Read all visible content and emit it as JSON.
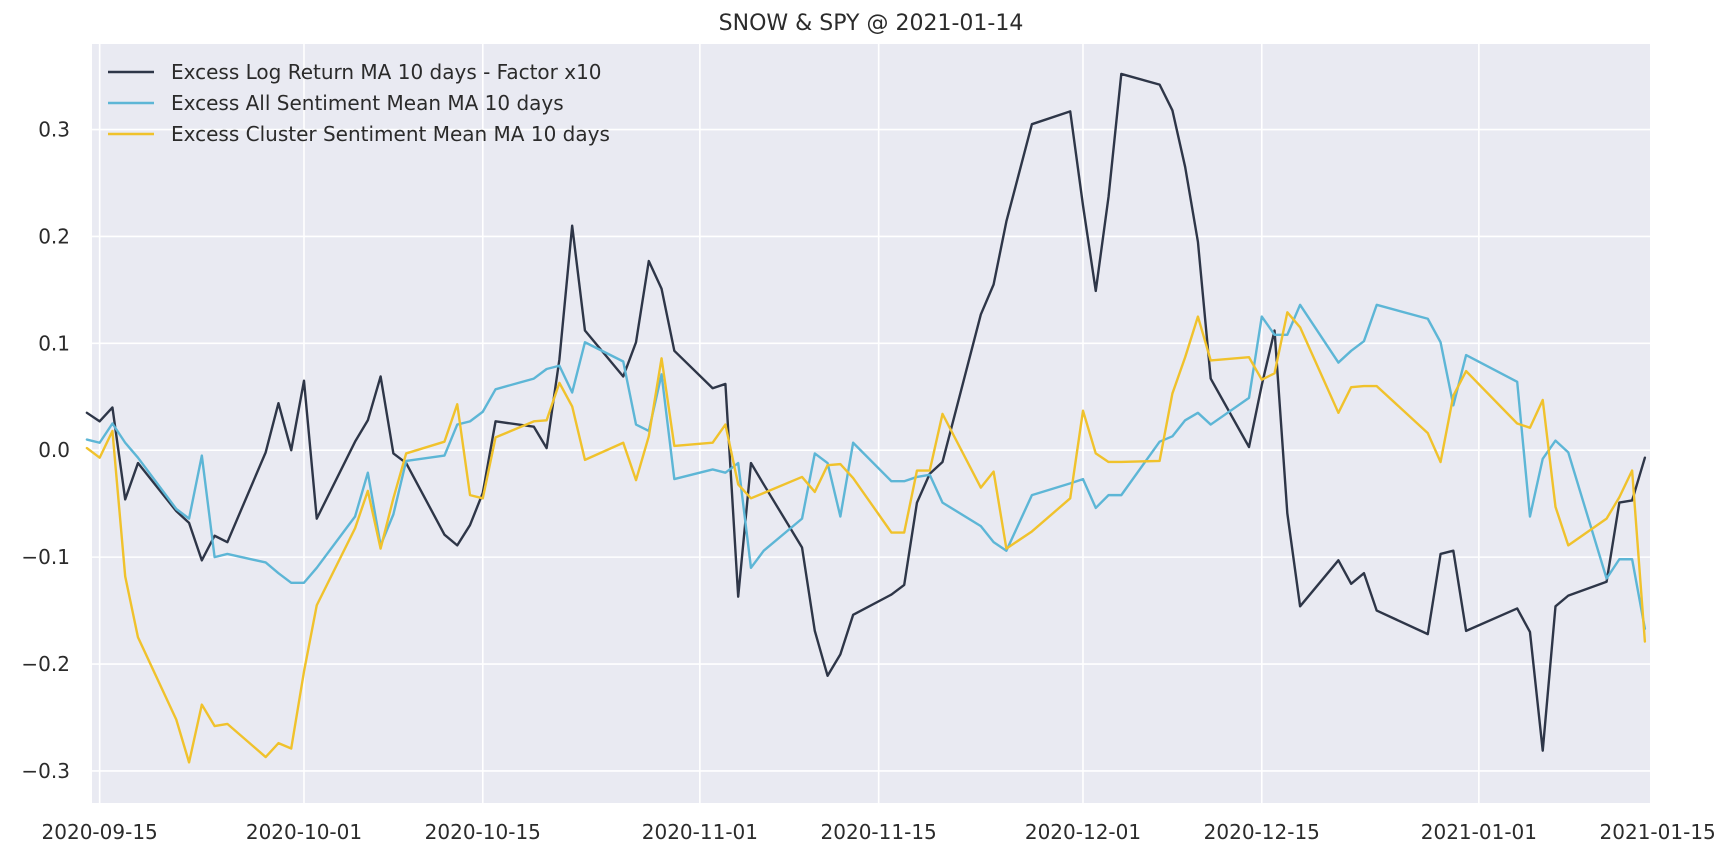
{
  "chart_data": {
    "type": "line",
    "title": "SNOW & SPY @ 2021-01-14",
    "xlabel": "",
    "ylabel": "",
    "x_type": "date",
    "xlim": [
      "2020-09-14",
      "2021-01-14"
    ],
    "ylim": [
      -0.33,
      0.38
    ],
    "xticks": [
      "2020-09-15",
      "2020-10-01",
      "2020-10-15",
      "2020-11-01",
      "2020-11-15",
      "2020-12-01",
      "2020-12-15",
      "2021-01-01",
      "2021-01-15"
    ],
    "yticks": [
      -0.3,
      -0.2,
      -0.1,
      0.0,
      0.1,
      0.2,
      0.3
    ],
    "ytick_labels": [
      "−0.3",
      "−0.2",
      "−0.1",
      "0.0",
      "0.1",
      "0.2",
      "0.3"
    ],
    "grid": true,
    "legend_position": "top-left",
    "background": "#e9eaf2",
    "series": [
      {
        "name": "Excess Log Return MA 10 days - Factor x10",
        "color": "#2e3648",
        "points": [
          [
            "2020-09-14",
            0.035
          ],
          [
            "2020-09-15",
            0.027
          ],
          [
            "2020-09-16",
            0.04
          ],
          [
            "2020-09-17",
            -0.046
          ],
          [
            "2020-09-18",
            -0.012
          ],
          [
            "2020-09-21",
            -0.057
          ],
          [
            "2020-09-22",
            -0.068
          ],
          [
            "2020-09-23",
            -0.103
          ],
          [
            "2020-09-24",
            -0.08
          ],
          [
            "2020-09-25",
            -0.086
          ],
          [
            "2020-09-28",
            -0.002
          ],
          [
            "2020-09-29",
            0.044
          ],
          [
            "2020-09-30",
            0.0
          ],
          [
            "2020-10-01",
            0.065
          ],
          [
            "2020-10-02",
            -0.064
          ],
          [
            "2020-10-05",
            0.008
          ],
          [
            "2020-10-06",
            0.028
          ],
          [
            "2020-10-07",
            0.069
          ],
          [
            "2020-10-08",
            -0.003
          ],
          [
            "2020-10-09",
            -0.012
          ],
          [
            "2020-10-12",
            -0.079
          ],
          [
            "2020-10-13",
            -0.089
          ],
          [
            "2020-10-14",
            -0.07
          ],
          [
            "2020-10-15",
            -0.04
          ],
          [
            "2020-10-16",
            0.027
          ],
          [
            "2020-10-19",
            0.022
          ],
          [
            "2020-10-20",
            0.002
          ],
          [
            "2020-10-21",
            0.085
          ],
          [
            "2020-10-22",
            0.21
          ],
          [
            "2020-10-23",
            0.112
          ],
          [
            "2020-10-26",
            0.069
          ],
          [
            "2020-10-27",
            0.101
          ],
          [
            "2020-10-28",
            0.177
          ],
          [
            "2020-10-29",
            0.151
          ],
          [
            "2020-10-30",
            0.093
          ],
          [
            "2020-11-02",
            0.058
          ],
          [
            "2020-11-03",
            0.062
          ],
          [
            "2020-11-04",
            -0.137
          ],
          [
            "2020-11-05",
            -0.012
          ],
          [
            "2020-11-06",
            -0.032
          ],
          [
            "2020-11-09",
            -0.091
          ],
          [
            "2020-11-10",
            -0.169
          ],
          [
            "2020-11-11",
            -0.211
          ],
          [
            "2020-11-12",
            -0.191
          ],
          [
            "2020-11-13",
            -0.154
          ],
          [
            "2020-11-16",
            -0.135
          ],
          [
            "2020-11-17",
            -0.126
          ],
          [
            "2020-11-18",
            -0.049
          ],
          [
            "2020-11-19",
            -0.022
          ],
          [
            "2020-11-20",
            -0.011
          ],
          [
            "2020-11-23",
            0.127
          ],
          [
            "2020-11-24",
            0.155
          ],
          [
            "2020-11-25",
            0.214
          ],
          [
            "2020-11-27",
            0.305
          ],
          [
            "2020-11-30",
            0.317
          ],
          [
            "2020-12-01",
            0.229
          ],
          [
            "2020-12-02",
            0.149
          ],
          [
            "2020-12-03",
            0.237
          ],
          [
            "2020-12-04",
            0.352
          ],
          [
            "2020-12-07",
            0.342
          ],
          [
            "2020-12-08",
            0.318
          ],
          [
            "2020-12-09",
            0.265
          ],
          [
            "2020-12-10",
            0.195
          ],
          [
            "2020-12-11",
            0.067
          ],
          [
            "2020-12-14",
            0.003
          ],
          [
            "2020-12-15",
            0.061
          ],
          [
            "2020-12-16",
            0.112
          ],
          [
            "2020-12-17",
            -0.059
          ],
          [
            "2020-12-18",
            -0.146
          ],
          [
            "2020-12-21",
            -0.103
          ],
          [
            "2020-12-22",
            -0.125
          ],
          [
            "2020-12-23",
            -0.115
          ],
          [
            "2020-12-24",
            -0.15
          ],
          [
            "2020-12-28",
            -0.172
          ],
          [
            "2020-12-29",
            -0.097
          ],
          [
            "2020-12-30",
            -0.094
          ],
          [
            "2020-12-31",
            -0.169
          ],
          [
            "2021-01-04",
            -0.148
          ],
          [
            "2021-01-05",
            -0.17
          ],
          [
            "2021-01-06",
            -0.281
          ],
          [
            "2021-01-07",
            -0.146
          ],
          [
            "2021-01-08",
            -0.136
          ],
          [
            "2021-01-11",
            -0.123
          ],
          [
            "2021-01-12",
            -0.049
          ],
          [
            "2021-01-13",
            -0.047
          ],
          [
            "2021-01-14",
            -0.007
          ]
        ]
      },
      {
        "name": "Excess All Sentiment Mean MA 10 days",
        "color": "#5db6d6",
        "points": [
          [
            "2020-09-14",
            0.01
          ],
          [
            "2020-09-15",
            0.007
          ],
          [
            "2020-09-16",
            0.025
          ],
          [
            "2020-09-17",
            0.007
          ],
          [
            "2020-09-18",
            -0.007
          ],
          [
            "2020-09-21",
            -0.055
          ],
          [
            "2020-09-22",
            -0.064
          ],
          [
            "2020-09-23",
            -0.005
          ],
          [
            "2020-09-24",
            -0.1
          ],
          [
            "2020-09-25",
            -0.097
          ],
          [
            "2020-09-28",
            -0.105
          ],
          [
            "2020-09-29",
            -0.115
          ],
          [
            "2020-09-30",
            -0.124
          ],
          [
            "2020-10-01",
            -0.124
          ],
          [
            "2020-10-02",
            -0.11
          ],
          [
            "2020-10-05",
            -0.062
          ],
          [
            "2020-10-06",
            -0.021
          ],
          [
            "2020-10-07",
            -0.089
          ],
          [
            "2020-10-08",
            -0.06
          ],
          [
            "2020-10-09",
            -0.01
          ],
          [
            "2020-10-12",
            -0.005
          ],
          [
            "2020-10-13",
            0.024
          ],
          [
            "2020-10-14",
            0.027
          ],
          [
            "2020-10-15",
            0.036
          ],
          [
            "2020-10-16",
            0.057
          ],
          [
            "2020-10-19",
            0.067
          ],
          [
            "2020-10-20",
            0.076
          ],
          [
            "2020-10-21",
            0.079
          ],
          [
            "2020-10-22",
            0.054
          ],
          [
            "2020-10-23",
            0.101
          ],
          [
            "2020-10-26",
            0.083
          ],
          [
            "2020-10-27",
            0.024
          ],
          [
            "2020-10-28",
            0.018
          ],
          [
            "2020-10-29",
            0.071
          ],
          [
            "2020-10-30",
            -0.027
          ],
          [
            "2020-11-02",
            -0.018
          ],
          [
            "2020-11-03",
            -0.021
          ],
          [
            "2020-11-04",
            -0.012
          ],
          [
            "2020-11-05",
            -0.11
          ],
          [
            "2020-11-06",
            -0.094
          ],
          [
            "2020-11-09",
            -0.064
          ],
          [
            "2020-11-10",
            -0.003
          ],
          [
            "2020-11-11",
            -0.012
          ],
          [
            "2020-11-12",
            -0.062
          ],
          [
            "2020-11-13",
            0.007
          ],
          [
            "2020-11-16",
            -0.029
          ],
          [
            "2020-11-17",
            -0.029
          ],
          [
            "2020-11-18",
            -0.025
          ],
          [
            "2020-11-19",
            -0.023
          ],
          [
            "2020-11-20",
            -0.049
          ],
          [
            "2020-11-23",
            -0.071
          ],
          [
            "2020-11-24",
            -0.086
          ],
          [
            "2020-11-25",
            -0.094
          ],
          [
            "2020-11-27",
            -0.042
          ],
          [
            "2020-11-30",
            -0.031
          ],
          [
            "2020-12-01",
            -0.027
          ],
          [
            "2020-12-02",
            -0.054
          ],
          [
            "2020-12-03",
            -0.042
          ],
          [
            "2020-12-04",
            -0.042
          ],
          [
            "2020-12-07",
            0.008
          ],
          [
            "2020-12-08",
            0.013
          ],
          [
            "2020-12-09",
            0.028
          ],
          [
            "2020-12-10",
            0.035
          ],
          [
            "2020-12-11",
            0.024
          ],
          [
            "2020-12-14",
            0.049
          ],
          [
            "2020-12-15",
            0.125
          ],
          [
            "2020-12-16",
            0.108
          ],
          [
            "2020-12-17",
            0.108
          ],
          [
            "2020-12-18",
            0.136
          ],
          [
            "2020-12-21",
            0.082
          ],
          [
            "2020-12-22",
            0.093
          ],
          [
            "2020-12-23",
            0.102
          ],
          [
            "2020-12-24",
            0.136
          ],
          [
            "2020-12-28",
            0.123
          ],
          [
            "2020-12-29",
            0.101
          ],
          [
            "2020-12-30",
            0.042
          ],
          [
            "2020-12-31",
            0.089
          ],
          [
            "2021-01-04",
            0.064
          ],
          [
            "2021-01-05",
            -0.062
          ],
          [
            "2021-01-06",
            -0.008
          ],
          [
            "2021-01-07",
            0.009
          ],
          [
            "2021-01-08",
            -0.002
          ],
          [
            "2021-01-11",
            -0.12
          ],
          [
            "2021-01-12",
            -0.102
          ],
          [
            "2021-01-13",
            -0.102
          ],
          [
            "2021-01-14",
            -0.167
          ]
        ]
      },
      {
        "name": "Excess Cluster Sentiment Mean MA 10 days",
        "color": "#f0c22c",
        "points": [
          [
            "2020-09-14",
            0.002
          ],
          [
            "2020-09-15",
            -0.007
          ],
          [
            "2020-09-16",
            0.018
          ],
          [
            "2020-09-17",
            -0.118
          ],
          [
            "2020-09-18",
            -0.175
          ],
          [
            "2020-09-21",
            -0.252
          ],
          [
            "2020-09-22",
            -0.292
          ],
          [
            "2020-09-23",
            -0.238
          ],
          [
            "2020-09-24",
            -0.258
          ],
          [
            "2020-09-25",
            -0.256
          ],
          [
            "2020-09-28",
            -0.287
          ],
          [
            "2020-09-29",
            -0.274
          ],
          [
            "2020-09-30",
            -0.279
          ],
          [
            "2020-10-01",
            -0.207
          ],
          [
            "2020-10-02",
            -0.145
          ],
          [
            "2020-10-05",
            -0.073
          ],
          [
            "2020-10-06",
            -0.038
          ],
          [
            "2020-10-07",
            -0.092
          ],
          [
            "2020-10-08",
            -0.045
          ],
          [
            "2020-10-09",
            -0.003
          ],
          [
            "2020-10-12",
            0.008
          ],
          [
            "2020-10-13",
            0.043
          ],
          [
            "2020-10-14",
            -0.042
          ],
          [
            "2020-10-15",
            -0.045
          ],
          [
            "2020-10-16",
            0.012
          ],
          [
            "2020-10-19",
            0.027
          ],
          [
            "2020-10-20",
            0.028
          ],
          [
            "2020-10-21",
            0.063
          ],
          [
            "2020-10-22",
            0.041
          ],
          [
            "2020-10-23",
            -0.009
          ],
          [
            "2020-10-26",
            0.007
          ],
          [
            "2020-10-27",
            -0.028
          ],
          [
            "2020-10-28",
            0.013
          ],
          [
            "2020-10-29",
            0.086
          ],
          [
            "2020-10-30",
            0.004
          ],
          [
            "2020-11-02",
            0.007
          ],
          [
            "2020-11-03",
            0.024
          ],
          [
            "2020-11-04",
            -0.032
          ],
          [
            "2020-11-05",
            -0.045
          ],
          [
            "2020-11-06",
            -0.04
          ],
          [
            "2020-11-09",
            -0.025
          ],
          [
            "2020-11-10",
            -0.039
          ],
          [
            "2020-11-11",
            -0.014
          ],
          [
            "2020-11-12",
            -0.013
          ],
          [
            "2020-11-13",
            -0.026
          ],
          [
            "2020-11-16",
            -0.077
          ],
          [
            "2020-11-17",
            -0.077
          ],
          [
            "2020-11-18",
            -0.019
          ],
          [
            "2020-11-19",
            -0.019
          ],
          [
            "2020-11-20",
            0.034
          ],
          [
            "2020-11-23",
            -0.035
          ],
          [
            "2020-11-24",
            -0.02
          ],
          [
            "2020-11-25",
            -0.092
          ],
          [
            "2020-11-27",
            -0.076
          ],
          [
            "2020-11-30",
            -0.045
          ],
          [
            "2020-12-01",
            0.037
          ],
          [
            "2020-12-02",
            -0.003
          ],
          [
            "2020-12-03",
            -0.011
          ],
          [
            "2020-12-04",
            -0.011
          ],
          [
            "2020-12-07",
            -0.01
          ],
          [
            "2020-12-08",
            0.053
          ],
          [
            "2020-12-09",
            0.087
          ],
          [
            "2020-12-10",
            0.125
          ],
          [
            "2020-12-11",
            0.084
          ],
          [
            "2020-12-14",
            0.087
          ],
          [
            "2020-12-15",
            0.066
          ],
          [
            "2020-12-16",
            0.072
          ],
          [
            "2020-12-17",
            0.129
          ],
          [
            "2020-12-18",
            0.115
          ],
          [
            "2020-12-21",
            0.035
          ],
          [
            "2020-12-22",
            0.059
          ],
          [
            "2020-12-23",
            0.06
          ],
          [
            "2020-12-24",
            0.06
          ],
          [
            "2020-12-28",
            0.016
          ],
          [
            "2020-12-29",
            -0.011
          ],
          [
            "2020-12-30",
            0.051
          ],
          [
            "2020-12-31",
            0.074
          ],
          [
            "2021-01-04",
            0.025
          ],
          [
            "2021-01-05",
            0.021
          ],
          [
            "2021-01-06",
            0.047
          ],
          [
            "2021-01-07",
            -0.053
          ],
          [
            "2021-01-08",
            -0.089
          ],
          [
            "2021-01-11",
            -0.064
          ],
          [
            "2021-01-12",
            -0.044
          ],
          [
            "2021-01-13",
            -0.019
          ],
          [
            "2021-01-14",
            -0.179
          ]
        ]
      }
    ]
  }
}
